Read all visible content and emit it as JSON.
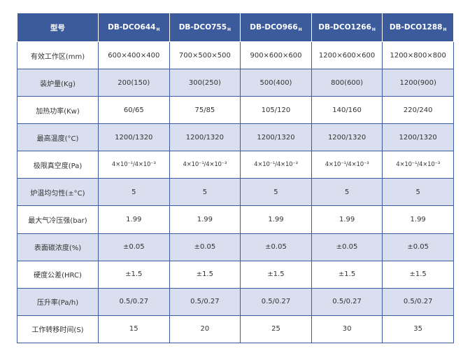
{
  "table": {
    "header": {
      "label": "型号",
      "models": [
        {
          "name": "DB-DCO644",
          "sub": "H"
        },
        {
          "name": "DB-DCO755",
          "sub": "H"
        },
        {
          "name": "DB-DCO966",
          "sub": "H"
        },
        {
          "name": "DB-DCO1266",
          "sub": "H"
        },
        {
          "name": "DB-DCO1288",
          "sub": "H"
        }
      ]
    },
    "rows": [
      {
        "label": "有效工作区(mm)",
        "values": [
          "600×400×400",
          "700×500×500",
          "900×600×600",
          "1200×600×600",
          "1200×800×800"
        ]
      },
      {
        "label": "装炉量(Kg)",
        "values": [
          "200(150)",
          "300(250)",
          "500(400)",
          "800(600)",
          "1200(900)"
        ]
      },
      {
        "label": "加热功率(Kw)",
        "values": [
          "60/65",
          "75/85",
          "105/120",
          "140/160",
          "220/240"
        ]
      },
      {
        "label": "最高温度(°C)",
        "values": [
          "1200/1320",
          "1200/1320",
          "1200/1320",
          "1200/1320",
          "1200/1320"
        ]
      },
      {
        "label": "极限真空度(Pa)",
        "values": [
          "4×10⁻¹/4×10⁻³",
          "4×10⁻¹/4×10⁻³",
          "4×10⁻¹/4×10⁻³",
          "4×10⁻¹/4×10⁻³",
          "4×10⁻¹/4×10⁻³"
        ]
      },
      {
        "label": "炉温均匀性(±°C)",
        "values": [
          "5",
          "5",
          "5",
          "5",
          "5"
        ]
      },
      {
        "label": "最大气冷压强(bar)",
        "values": [
          "1.99",
          "1.99",
          "1.99",
          "1.99",
          "1.99"
        ]
      },
      {
        "label": "表面碳浓度(%)",
        "values": [
          "±0.05",
          "±0.05",
          "±0.05",
          "±0.05",
          "±0.05"
        ]
      },
      {
        "label": "硬度公差(HRC)",
        "values": [
          "±1.5",
          "±1.5",
          "±1.5",
          "±1.5",
          "±1.5"
        ]
      },
      {
        "label": "压升率(Pa/h)",
        "values": [
          "0.5/0.27",
          "0.5/0.27",
          "0.5/0.27",
          "0.5/0.27",
          "0.5/0.27"
        ]
      },
      {
        "label": "工作转移时间(S)",
        "values": [
          "15",
          "20",
          "25",
          "30",
          "35"
        ]
      }
    ]
  }
}
